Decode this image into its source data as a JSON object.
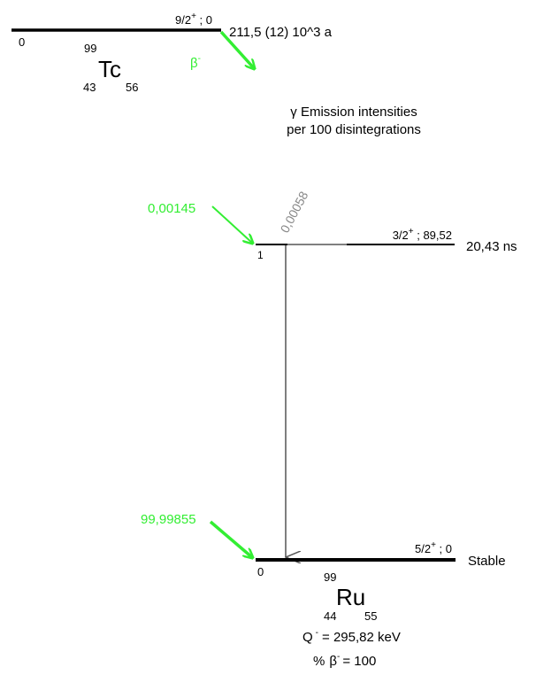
{
  "parent": {
    "spin_energy": "9/2+ ; 0",
    "spin": "9/2",
    "parity": "+",
    "energy": "0",
    "level_index": "0",
    "half_life": "211,5 (12) 10^3 a",
    "mass_number": "99",
    "symbol": "Tc",
    "atomic_number": "43",
    "neutron_number": "56"
  },
  "decay_mode": {
    "symbol": "β",
    "charge": "-"
  },
  "header": {
    "gamma_symbol": "γ",
    "line1": "Emission intensities",
    "line2": "per 100 disintegrations"
  },
  "levels": [
    {
      "index": "1",
      "spin": "3/2",
      "parity": "+",
      "energy": "89,52",
      "half_life": "20,43 ns",
      "beta_intensity": "0,00145"
    },
    {
      "index": "0",
      "spin": "5/2",
      "parity": "+",
      "energy": "0",
      "half_life": "Stable",
      "beta_intensity": "99,99855"
    }
  ],
  "gamma_transition": {
    "intensity": "0,00058"
  },
  "daughter": {
    "mass_number": "99",
    "symbol": "Ru",
    "atomic_number": "44",
    "neutron_number": "55"
  },
  "footer": {
    "q_label": "Q",
    "q_sign": "-",
    "q_value": "= 295,82 keV",
    "percent_label": "%",
    "beta_symbol": "β",
    "beta_sign": "-",
    "beta_value": "= 100"
  },
  "colors": {
    "beta": "#33ee33",
    "line": "#000000",
    "gamma_label": "#888888",
    "gamma_line": "#555555"
  }
}
